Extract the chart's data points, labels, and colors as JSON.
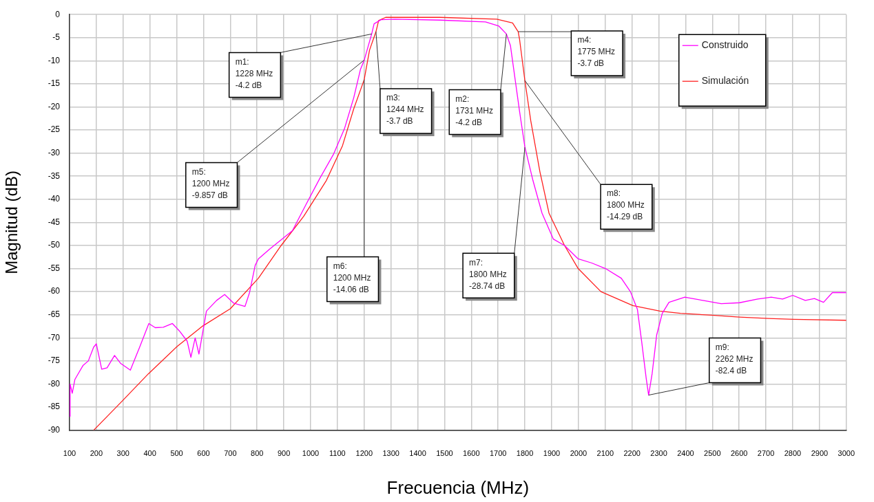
{
  "chart_data": {
    "type": "line",
    "xlabel": "Frecuencia (MHz)",
    "ylabel": "Magnitud (dB)",
    "xlim": [
      100,
      3000
    ],
    "xticks": [
      100,
      200,
      300,
      400,
      500,
      600,
      700,
      800,
      900,
      1000,
      1100,
      1200,
      1300,
      1400,
      1500,
      1600,
      1700,
      1800,
      1900,
      2000,
      2100,
      2200,
      2300,
      2400,
      2500,
      2600,
      2700,
      2800,
      2900,
      3000
    ],
    "ylim": [
      -90,
      0
    ],
    "yticks": [
      -90,
      -85,
      -80,
      -75,
      -70,
      -65,
      -60,
      -55,
      -50,
      -45,
      -40,
      -35,
      -30,
      -25,
      -20,
      -15,
      -10,
      -5,
      0
    ],
    "grid": true,
    "legend": "top right",
    "marker": "none",
    "line_style": "solid",
    "series": [
      {
        "name": "Construido",
        "color": "#ff00ff",
        "x": [
          100,
          102,
          110,
          120,
          130,
          150,
          170,
          190,
          200,
          220,
          240,
          268,
          290,
          327,
          361,
          396,
          420,
          450,
          484,
          510,
          539,
          553,
          569,
          583,
          611,
          649,
          679,
          713,
          755,
          772,
          793,
          805,
          847,
          932,
          983,
          1034,
          1085,
          1127,
          1161,
          1186,
          1200,
          1228,
          1237,
          1263,
          1314,
          1483,
          1653,
          1703,
          1731,
          1746,
          1763,
          1780,
          1800,
          1830,
          1864,
          1906,
          1948,
          1999,
          2050,
          2101,
          2160,
          2194,
          2220,
          2236,
          2253,
          2262,
          2275,
          2292,
          2313,
          2338,
          2397,
          2465,
          2533,
          2601,
          2669,
          2720,
          2762,
          2800,
          2847,
          2881,
          2915,
          2948,
          3000
        ],
        "values": [
          -87,
          -80,
          -82,
          -79,
          -78,
          -76,
          -75,
          -72,
          -71.3,
          -76.8,
          -76.5,
          -73.8,
          -75.5,
          -77,
          -72.1,
          -66.9,
          -67.8,
          -67.7,
          -66.9,
          -68.5,
          -70.7,
          -74.2,
          -70,
          -73.5,
          -64.2,
          -61.9,
          -60.6,
          -62.5,
          -63.2,
          -60.2,
          -54.3,
          -52.9,
          -50.8,
          -46.8,
          -41.1,
          -35.5,
          -30.3,
          -24.6,
          -18,
          -11.9,
          -9.9,
          -4.2,
          -2,
          -1.1,
          -1,
          -1.2,
          -1.6,
          -2.5,
          -4.2,
          -6.7,
          -13.8,
          -20.9,
          -28.7,
          -35.9,
          -43,
          -48.6,
          -50,
          -52.9,
          -53.8,
          -55,
          -57.1,
          -60,
          -63.8,
          -70.8,
          -78.8,
          -82.4,
          -77.8,
          -69.4,
          -64.7,
          -62.3,
          -61.2,
          -61.9,
          -62.6,
          -62.4,
          -61.6,
          -61.2,
          -61.6,
          -60.8,
          -61.9,
          -61.5,
          -62.3,
          -60.2,
          -60.2
        ]
      },
      {
        "name": "Simulación",
        "color": "#ff2020",
        "x": [
          190,
          293,
          394,
          501,
          598,
          700,
          805,
          890,
          974,
          1059,
          1119,
          1161,
          1200,
          1220,
          1244,
          1254,
          1280,
          1483,
          1695,
          1754,
          1775,
          1780,
          1800,
          1822,
          1856,
          1890,
          1948,
          1999,
          2084,
          2203,
          2304,
          2381,
          2499,
          2601,
          2711,
          2804,
          3000
        ],
        "values": [
          -90,
          -83.9,
          -77.8,
          -71.9,
          -67.4,
          -63.7,
          -57.1,
          -50,
          -43.7,
          -35.9,
          -28.4,
          -20.4,
          -14.1,
          -7.7,
          -3.7,
          -1.3,
          -0.6,
          -0.6,
          -1,
          -1.8,
          -3.7,
          -5.3,
          -14.3,
          -23,
          -34,
          -43,
          -50,
          -55,
          -60,
          -63,
          -64.2,
          -64.7,
          -65.1,
          -65.5,
          -65.8,
          -66,
          -66.2
        ]
      }
    ],
    "annotations": [
      {
        "text": "m1:\n1228 MHz\n-4.2 dB",
        "x": 1228,
        "y": -4.2
      },
      {
        "text": "m2:\n1731 MHz\n-4.2 dB",
        "x": 1731,
        "y": -4.2
      },
      {
        "text": "m3:\n1244 MHz\n-3.7 dB",
        "x": 1244,
        "y": -3.7
      },
      {
        "text": "m4:\n1775 MHz\n-3.7 dB",
        "x": 1775,
        "y": -3.7
      },
      {
        "text": "m5:\n1200 MHz\n-9.857 dB",
        "x": 1200,
        "y": -9.857
      },
      {
        "text": "m6:\n1200 MHz\n-14.06 dB",
        "x": 1200,
        "y": -14.06
      },
      {
        "text": "m7:\n1800 MHz\n-28.74 dB",
        "x": 1800,
        "y": -28.74
      },
      {
        "text": "m8:\n1800 MHz\n-14.29 dB",
        "x": 1800,
        "y": -14.29
      },
      {
        "text": "m9:\n2262 MHz\n-82.4 dB",
        "x": 2262,
        "y": -82.4
      }
    ]
  }
}
